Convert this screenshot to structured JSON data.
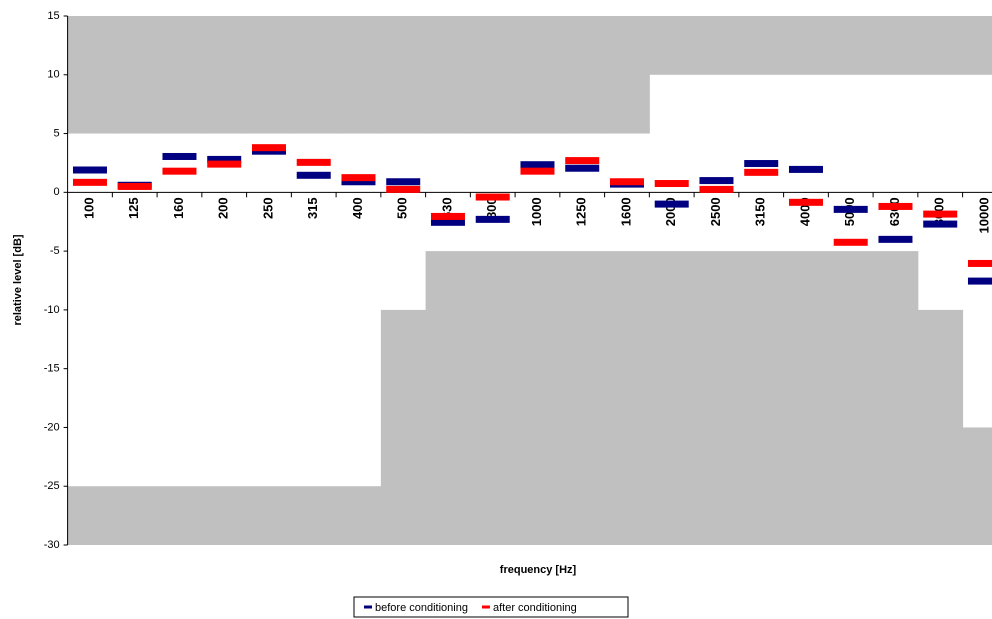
{
  "chart_data": {
    "type": "floating-marker",
    "x_label": "frequency [Hz]",
    "y_label": "relative level [dB]",
    "categories": [
      "100",
      "125",
      "160",
      "200",
      "250",
      "315",
      "400",
      "500",
      "630",
      "800",
      "1000",
      "1250",
      "1600",
      "2000",
      "2500",
      "3150",
      "4000",
      "5000",
      "6300",
      "8000",
      "10000"
    ],
    "series": [
      {
        "name": "before conditioning",
        "color": "#000080",
        "values": [
          1.9,
          0.6,
          3.05,
          2.8,
          3.5,
          1.45,
          0.9,
          0.9,
          -2.55,
          -2.3,
          2.35,
          2.05,
          0.7,
          -1.0,
          1.0,
          2.45,
          1.95,
          -1.45,
          -4.0,
          -2.7,
          -7.55
        ]
      },
      {
        "name": "after conditioning",
        "color": "#ff0000",
        "values": [
          0.85,
          0.5,
          1.8,
          2.4,
          3.8,
          2.55,
          1.25,
          0.25,
          -2.05,
          -0.4,
          1.8,
          2.7,
          0.9,
          0.75,
          0.25,
          1.7,
          -0.85,
          -4.25,
          -1.2,
          -1.85,
          -6.05
        ]
      }
    ],
    "limits": {
      "color": "#c0c0c0",
      "upper": [
        5,
        5,
        5,
        5,
        5,
        5,
        5,
        5,
        5,
        5,
        5,
        5,
        5,
        10,
        10,
        10,
        10,
        10,
        10,
        10,
        10
      ],
      "lower": [
        -25,
        -25,
        -25,
        -25,
        -25,
        -25,
        -25,
        -10,
        -5,
        -5,
        -5,
        -5,
        -5,
        -5,
        -5,
        -5,
        -5,
        -5,
        -5,
        -10,
        -20
      ]
    },
    "ylim": [
      -30,
      15
    ],
    "yticks": [
      15,
      10,
      5,
      0,
      -5,
      -10,
      -15,
      -20,
      -25,
      -30
    ]
  }
}
